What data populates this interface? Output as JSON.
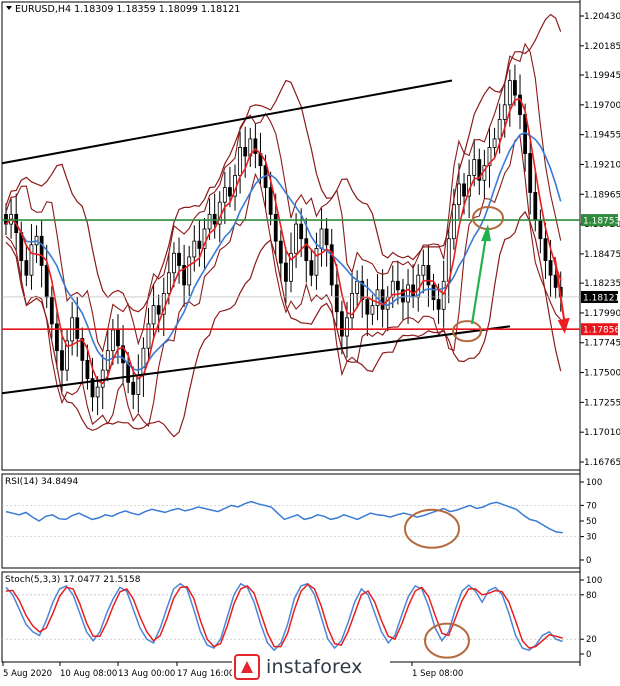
{
  "chart_data": [
    {
      "panel": "price",
      "type": "candlestick",
      "title": "EURUSD,H4",
      "ohlc_text": "1.18309 1.18359 1.18099 1.18121",
      "y_ticks": [
        "1.20430",
        "1.20185",
        "1.19945",
        "1.19700",
        "1.19455",
        "1.19210",
        "1.18965",
        "1.18720",
        "1.18475",
        "1.18235",
        "1.17990",
        "1.17745",
        "1.17500",
        "1.17255",
        "1.17010",
        "1.16765"
      ],
      "ylim": [
        1.16765,
        1.2043
      ],
      "current_price": "1.18121",
      "levels": [
        {
          "value": 1.18753,
          "label": "1.18753",
          "color": "#2e8b3c"
        },
        {
          "value": 1.17856,
          "label": "1.17856",
          "color": "#e8141a"
        }
      ],
      "close_series": [
        1.1872,
        1.188,
        1.1865,
        1.1842,
        1.183,
        1.1855,
        1.1862,
        1.1838,
        1.1812,
        1.179,
        1.1768,
        1.1752,
        1.1776,
        1.1795,
        1.1778,
        1.176,
        1.1745,
        1.173,
        1.1738,
        1.1752,
        1.1768,
        1.1785,
        1.1772,
        1.1758,
        1.1742,
        1.1732,
        1.1748,
        1.177,
        1.179,
        1.1805,
        1.1798,
        1.1815,
        1.1832,
        1.1848,
        1.1838,
        1.1822,
        1.1845,
        1.1858,
        1.1852,
        1.1868,
        1.188,
        1.1872,
        1.189,
        1.1902,
        1.1895,
        1.1912,
        1.1935,
        1.1928,
        1.1942,
        1.193,
        1.192,
        1.1902,
        1.188,
        1.1858,
        1.184,
        1.1825,
        1.1848,
        1.1872,
        1.186,
        1.1842,
        1.183,
        1.1852,
        1.1868,
        1.1855,
        1.1822,
        1.18,
        1.178,
        1.1795,
        1.1815,
        1.1825,
        1.181,
        1.1798,
        1.1805,
        1.1818,
        1.1802,
        1.1812,
        1.1825,
        1.1818,
        1.1808,
        1.1822,
        1.1812,
        1.183,
        1.1838,
        1.1822,
        1.181,
        1.1802,
        1.1825,
        1.186,
        1.1888,
        1.1905,
        1.1895,
        1.1912,
        1.1925,
        1.1908,
        1.192,
        1.1935,
        1.1942,
        1.1958,
        1.197,
        1.199,
        1.1978,
        1.1962,
        1.193,
        1.1898,
        1.1875,
        1.186,
        1.1842,
        1.183,
        1.182,
        1.1812
      ],
      "channel_upper": [
        [
          1.1922,
          0
        ],
        [
          1.199,
          1
        ]
      ],
      "channel_lower": [
        [
          1.1733,
          0
        ],
        [
          1.1788,
          1
        ]
      ],
      "x_ticks": [
        "5 Aug 2020",
        "10 Aug 08:00",
        "13 Aug 00:00",
        "17 Aug 16:00",
        "",
        "",
        "",
        "1 Sep 08:00"
      ]
    },
    {
      "panel": "rsi",
      "type": "line",
      "title": "RSI(14) 34.8494",
      "y_ticks": [
        "100",
        "70",
        "50",
        "30",
        "0"
      ],
      "levels": [
        70,
        30
      ],
      "ylim": [
        0,
        100
      ],
      "values": [
        62,
        60,
        58,
        61,
        55,
        50,
        56,
        58,
        53,
        52,
        57,
        60,
        56,
        52,
        54,
        58,
        56,
        60,
        63,
        60,
        58,
        62,
        65,
        63,
        61,
        64,
        66,
        63,
        65,
        68,
        66,
        64,
        62,
        66,
        70,
        68,
        72,
        75,
        72,
        70,
        68,
        60,
        52,
        55,
        58,
        52,
        54,
        58,
        56,
        52,
        54,
        58,
        55,
        52,
        56,
        60,
        58,
        57,
        55,
        58,
        60,
        58,
        55,
        57,
        60,
        63,
        66,
        62,
        64,
        67,
        70,
        66,
        68,
        72,
        74,
        71,
        68,
        65,
        58,
        52,
        50,
        45,
        40,
        36,
        34.85
      ]
    },
    {
      "panel": "stochastic",
      "type": "line",
      "title": "Stoch(5,3,3) 17.0477 21.5158",
      "y_ticks": [
        "100",
        "80",
        "20",
        "0"
      ],
      "levels": [
        80,
        20
      ],
      "ylim": [
        0,
        100
      ],
      "series": [
        {
          "name": "",
          "color": "#4a86d8",
          "values": [
            90,
            80,
            60,
            40,
            30,
            25,
            45,
            70,
            88,
            92,
            80,
            55,
            30,
            18,
            30,
            55,
            75,
            90,
            85,
            60,
            35,
            20,
            15,
            35,
            62,
            88,
            95,
            88,
            60,
            30,
            12,
            8,
            20,
            50,
            80,
            95,
            90,
            70,
            40,
            15,
            5,
            15,
            40,
            75,
            92,
            95,
            80,
            50,
            20,
            8,
            18,
            42,
            70,
            88,
            80,
            55,
            30,
            15,
            25,
            52,
            78,
            92,
            88,
            65,
            35,
            18,
            30,
            60,
            85,
            93,
            85,
            70,
            86,
            90,
            80,
            55,
            25,
            8,
            5,
            12,
            25,
            30,
            20,
            17.05
          ]
        },
        {
          "name": "",
          "color": "#e81f1f",
          "values": [
            85,
            86,
            72,
            52,
            38,
            30,
            35,
            55,
            78,
            90,
            88,
            68,
            42,
            24,
            24,
            42,
            65,
            84,
            88,
            74,
            50,
            30,
            18,
            25,
            48,
            75,
            90,
            91,
            75,
            45,
            20,
            10,
            14,
            38,
            68,
            88,
            92,
            82,
            55,
            28,
            10,
            10,
            28,
            60,
            85,
            94,
            88,
            65,
            35,
            14,
            12,
            30,
            55,
            80,
            85,
            70,
            45,
            24,
            20,
            40,
            65,
            85,
            90,
            78,
            52,
            28,
            25,
            48,
            72,
            88,
            88,
            80,
            82,
            86,
            84,
            70,
            45,
            18,
            8,
            10,
            18,
            26,
            24,
            21.52
          ]
        }
      ]
    }
  ],
  "watermark": {
    "text": "instaforex"
  },
  "colors": {
    "channel": "#000000",
    "bands": "#8b1a1a",
    "ma_fast": "#e81f1f",
    "ma_slow": "#3a7bd5",
    "arrow_green": "#22b14c",
    "circle": "#b5683b"
  }
}
